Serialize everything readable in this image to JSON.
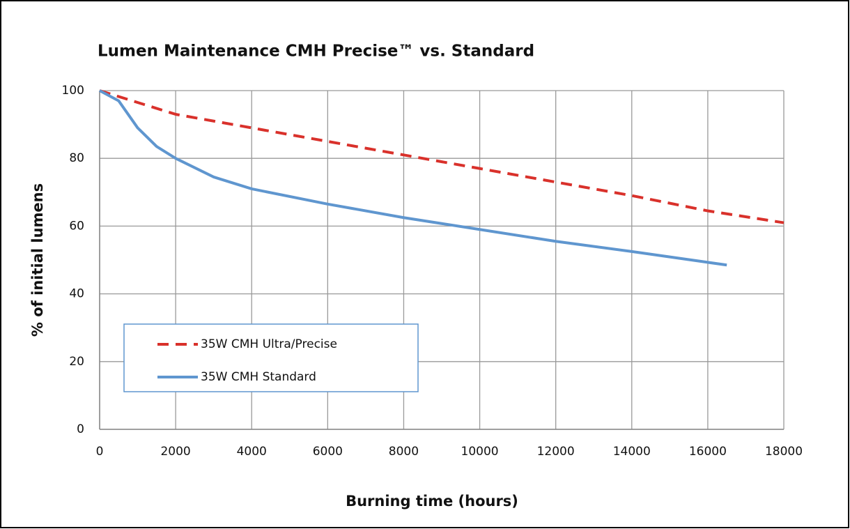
{
  "chart_data": {
    "type": "line",
    "title": "Lumen Maintenance  CMH Precise™ vs. Standard",
    "xlabel": "Burning time (hours)",
    "ylabel": "% of initial lumens",
    "series": [
      {
        "name": "35W CMH Ultra/Precise",
        "color": "#d9312b",
        "dash": true,
        "x": [
          0,
          2000,
          4000,
          6000,
          8000,
          10000,
          12000,
          14000,
          16000,
          18000
        ],
        "values": [
          100,
          93,
          89,
          85,
          81,
          77,
          73,
          69,
          64.5,
          61
        ]
      },
      {
        "name": "35W CMH Standard",
        "color": "#5f96cf",
        "dash": false,
        "x": [
          0,
          500,
          1000,
          1500,
          2000,
          3000,
          4000,
          6000,
          8000,
          10000,
          12000,
          14000,
          16000,
          16500
        ],
        "values": [
          100,
          97,
          89,
          83.5,
          80,
          74.5,
          71,
          66.5,
          62.5,
          59,
          55.5,
          52.5,
          49.3,
          48.5
        ]
      }
    ],
    "xlim": [
      0,
      18000
    ],
    "xticks": [
      0,
      2000,
      4000,
      6000,
      8000,
      10000,
      12000,
      14000,
      16000,
      18000
    ],
    "ylim": [
      0,
      100
    ],
    "yticks": [
      0,
      20,
      40,
      60,
      80,
      100
    ],
    "grid": true,
    "legend": "lower left"
  }
}
